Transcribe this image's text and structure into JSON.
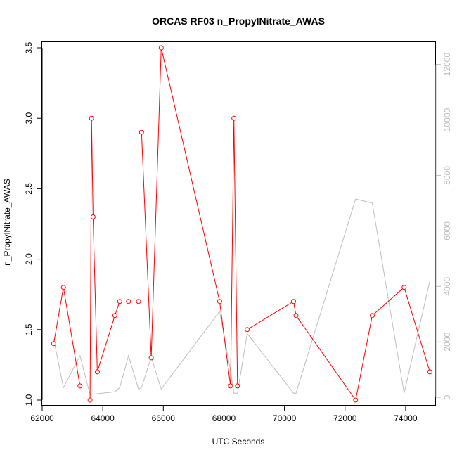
{
  "chart_data": {
    "type": "line",
    "title": "ORCAS RF03 n_PropylNitrate_AWAS",
    "xlabel": "UTC Seconds",
    "ylabel": "n_PropylNitrate_AWAS",
    "xlim": [
      62000,
      75000
    ],
    "ylim": [
      0.96,
      3.54
    ],
    "y2lim": [
      -300,
      12800
    ],
    "x_ticks": [
      "62000",
      "64000",
      "66000",
      "68000",
      "70000",
      "72000",
      "74000"
    ],
    "y_ticks": [
      "1.0",
      "1.5",
      "2.0",
      "2.5",
      "3.0",
      "3.5"
    ],
    "y2_ticks": [
      "0",
      "2000",
      "4000",
      "6000",
      "8000",
      "10000",
      "12000"
    ],
    "colors": {
      "primary": "#ff0000",
      "secondary": "#bebebe",
      "axis": "#000000"
    },
    "series": [
      {
        "axis": "left",
        "style": "line+points",
        "color": "#ff0000",
        "segments": [
          [
            [
              62380,
              1.4
            ],
            [
              62700,
              1.8
            ],
            [
              63250,
              1.1
            ]
          ],
          [
            [
              63580,
              1.0
            ],
            [
              63630,
              3.0
            ],
            [
              63680,
              2.3
            ],
            [
              63820,
              1.2
            ],
            [
              64400,
              1.6
            ],
            [
              64560,
              1.7
            ]
          ],
          [
            [
              64850,
              1.7
            ]
          ],
          [
            [
              65180,
              1.7
            ]
          ],
          [
            [
              65280,
              2.9
            ],
            [
              65600,
              1.3
            ],
            [
              65930,
              3.5
            ],
            [
              67860,
              1.7
            ],
            [
              68220,
              1.1
            ],
            [
              68330,
              3.0
            ],
            [
              68450,
              1.1
            ]
          ],
          [
            [
              68770,
              1.5
            ],
            [
              70300,
              1.7
            ],
            [
              70380,
              1.6
            ],
            [
              72350,
              1.0
            ],
            [
              72900,
              1.6
            ],
            [
              73950,
              1.8
            ],
            [
              74800,
              1.2
            ]
          ]
        ]
      },
      {
        "axis": "right",
        "style": "line",
        "color": "#bebebe",
        "points": [
          [
            62380,
            2100
          ],
          [
            62700,
            350
          ],
          [
            63250,
            1500
          ],
          [
            63580,
            100
          ],
          [
            63820,
            130
          ],
          [
            64400,
            200
          ],
          [
            64560,
            350
          ],
          [
            64850,
            1500
          ],
          [
            65180,
            300
          ],
          [
            65280,
            350
          ],
          [
            65600,
            1450
          ],
          [
            65930,
            300
          ],
          [
            67860,
            3100
          ],
          [
            68220,
            950
          ],
          [
            68330,
            150
          ],
          [
            68450,
            150
          ],
          [
            68770,
            2300
          ],
          [
            70300,
            150
          ],
          [
            70380,
            150
          ],
          [
            72350,
            7150
          ],
          [
            72900,
            7000
          ],
          [
            73950,
            150
          ],
          [
            74800,
            4200
          ]
        ]
      }
    ]
  }
}
